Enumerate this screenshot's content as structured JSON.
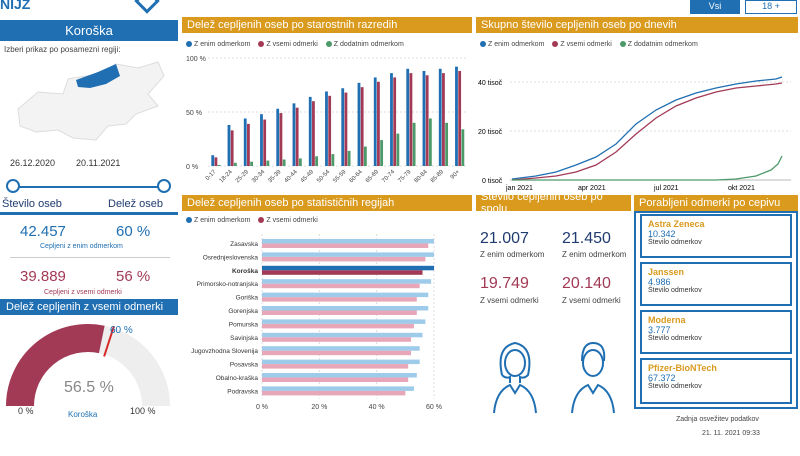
{
  "colors": {
    "blue": "#1f6fb2",
    "red": "#a23a56",
    "green": "#4c9a6a",
    "gold": "#d99a1e",
    "lightblue": "#9ecbe9",
    "pink": "#e8a7b8"
  },
  "top": {
    "logo_text": "NIJZ",
    "btn_vsi": "Vsi",
    "btn_18": "18 +"
  },
  "region": {
    "name": "Koroška",
    "select_label": "Izberi prikaz po posamezni regiji:",
    "date_from": "26.12.2020",
    "date_to": "20.11.2021",
    "col1_head": "Število oseb",
    "col2_head": "Delež oseb",
    "n1": "42.457",
    "p1": "60 %",
    "l1": "Cepljeni z enim odmerkom",
    "n2": "39.889",
    "p2": "56 %",
    "l2": "Cepljeni z vsemi odmerki"
  },
  "gauge": {
    "title": "Delež cepljenih z vsemi odmerki",
    "value": "56.5 %",
    "target": "60 %",
    "min": "0 %",
    "max": "100 %",
    "region": "Koroška",
    "fraction": 0.565,
    "target_fraction": 0.6
  },
  "age": {
    "title": "Delež cepljenih oseb po starostnih razredih",
    "legend": [
      "Z enim odmerkom",
      "Z vsemi odmerki",
      "Z dodatnim odmerkom"
    ],
    "yticks": [
      "100 %",
      "50 %",
      "0 %"
    ],
    "categories": [
      "0-17",
      "18-24",
      "25-29",
      "30-34",
      "35-39",
      "40-44",
      "45-49",
      "50-54",
      "55-59",
      "60-64",
      "65-69",
      "70-74",
      "75-79",
      "80-84",
      "85-89",
      "90+"
    ],
    "one": [
      10,
      38,
      44,
      48,
      53,
      58,
      64,
      69,
      72,
      77,
      82,
      86,
      90,
      88,
      90,
      92
    ],
    "all": [
      8,
      33,
      39,
      43,
      49,
      54,
      60,
      65,
      68,
      73,
      78,
      82,
      86,
      84,
      86,
      88
    ],
    "extra": [
      1,
      3,
      4,
      5,
      6,
      7,
      9,
      11,
      14,
      18,
      24,
      30,
      40,
      44,
      40,
      34
    ]
  },
  "daily": {
    "title": "Skupno število cepljenih oseb po dnevih",
    "legend": [
      "Z enim odmerkom",
      "Z vsemi odmerki",
      "Z dodatnim odmerkom"
    ],
    "yticks": [
      "40 tisoč",
      "20 tisoč",
      "0 tisoč"
    ],
    "xticks": [
      "jan 2021",
      "apr 2021",
      "jul 2021",
      "okt 2021"
    ]
  },
  "regions": {
    "title": "Delež cepljenih oseb po statističnih regijah",
    "legend": [
      "Z enim odmerkom",
      "Z vsemi odmerki"
    ],
    "xticks": [
      "0 %",
      "20 %",
      "40 %",
      "60 %"
    ],
    "items": [
      {
        "name": "Zasavska",
        "one": 60,
        "all": 58
      },
      {
        "name": "Osrednjeslovenska",
        "one": 60,
        "all": 57
      },
      {
        "name": "Koroška",
        "one": 60,
        "all": 56
      },
      {
        "name": "Primorsko-notranjska",
        "one": 59,
        "all": 55
      },
      {
        "name": "Goriška",
        "one": 58,
        "all": 54
      },
      {
        "name": "Gorenjska",
        "one": 58,
        "all": 54
      },
      {
        "name": "Pomurska",
        "one": 57,
        "all": 53
      },
      {
        "name": "Savinjska",
        "one": 56,
        "all": 52
      },
      {
        "name": "Jugovzhodna Slovenija",
        "one": 55,
        "all": 52
      },
      {
        "name": "Posavska",
        "one": 55,
        "all": 51
      },
      {
        "name": "Obalno-kraška",
        "one": 54,
        "all": 51
      },
      {
        "name": "Podravska",
        "one": 53,
        "all": 50
      }
    ]
  },
  "sex": {
    "title": "Število cepljenih oseb po spolu",
    "f_one": "21.007",
    "m_one": "21.450",
    "lab_one": "Z enim odmerkom",
    "f_all": "19.749",
    "m_all": "20.140",
    "lab_all": "Z vsemi odmerki"
  },
  "vaccines": {
    "title": "Porabljeni odmerki po cepivu",
    "label": "Število odmerkov",
    "items": [
      {
        "name": "Astra Zeneca",
        "value": "10.342"
      },
      {
        "name": "Janssen",
        "value": "4.986"
      },
      {
        "name": "Moderna",
        "value": "3.777"
      },
      {
        "name": "Pfizer-BioNTech",
        "value": "67.372"
      }
    ]
  },
  "footer": {
    "label": "Zadnja osvežitev podatkov",
    "date": "21. 11. 2021 09:33"
  }
}
